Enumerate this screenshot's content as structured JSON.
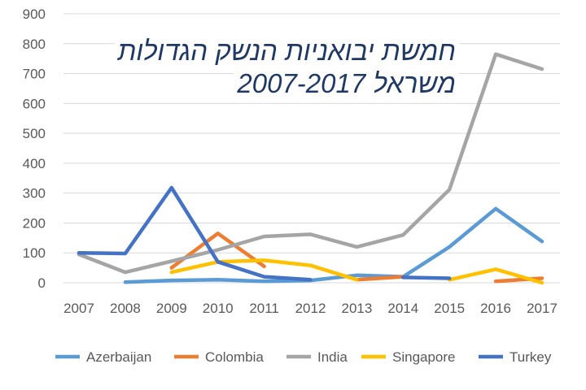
{
  "chart_data": {
    "type": "line",
    "title_lines": [
      "חמשת יבואניות הנשק הגדולות",
      "משראל  2007-2017"
    ],
    "xlabel": "",
    "ylabel": "",
    "x": [
      "2007",
      "2008",
      "2009",
      "2010",
      "2011",
      "2012",
      "2013",
      "2014",
      "2015",
      "2016",
      "2017"
    ],
    "ylim": [
      0,
      900
    ],
    "yticks": [
      "0",
      "100",
      "200",
      "300",
      "400",
      "500",
      "600",
      "700",
      "800",
      "900"
    ],
    "grid": true,
    "legend_position": "bottom",
    "series": [
      {
        "name": "Azerbaijan",
        "color": "#5b9bd5",
        "values": [
          null,
          2,
          8,
          10,
          5,
          8,
          25,
          20,
          120,
          248,
          138
        ]
      },
      {
        "name": "Colombia",
        "color": "#ed7d31",
        "values": [
          null,
          null,
          50,
          165,
          55,
          null,
          10,
          20,
          null,
          5,
          15
        ]
      },
      {
        "name": "India",
        "color": "#a5a5a5",
        "values": [
          95,
          35,
          72,
          110,
          155,
          162,
          120,
          160,
          312,
          765,
          715
        ]
      },
      {
        "name": "Singapore",
        "color": "#ffc000",
        "values": [
          null,
          null,
          35,
          70,
          75,
          58,
          10,
          null,
          10,
          45,
          0
        ]
      },
      {
        "name": "Turkey",
        "color": "#4472c4",
        "values": [
          100,
          98,
          318,
          70,
          20,
          10,
          null,
          18,
          15,
          null,
          null
        ]
      }
    ]
  }
}
